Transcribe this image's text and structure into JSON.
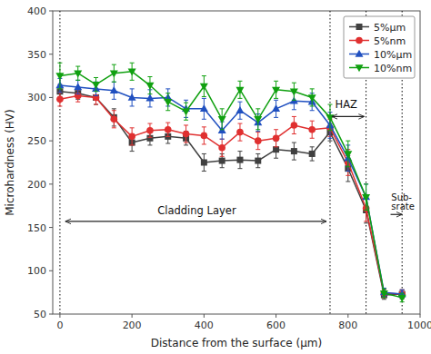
{
  "chart_data": {
    "type": "line",
    "x": [
      0,
      50,
      100,
      150,
      200,
      250,
      300,
      350,
      400,
      450,
      500,
      550,
      600,
      650,
      700,
      750,
      800,
      850,
      900,
      950
    ],
    "series": [
      {
        "name": "5%μm",
        "color": "#404040",
        "marker": "square",
        "values": [
          307,
          305,
          300,
          277,
          248,
          253,
          255,
          253,
          225,
          227,
          228,
          227,
          240,
          238,
          235,
          260,
          218,
          170,
          72,
          73
        ],
        "errors": [
          8,
          7,
          8,
          10,
          10,
          8,
          8,
          8,
          10,
          8,
          10,
          8,
          10,
          10,
          8,
          10,
          15,
          15,
          5,
          5
        ]
      },
      {
        "name": "5%nm",
        "color": "#e03030",
        "marker": "circle",
        "values": [
          298,
          302,
          300,
          275,
          255,
          262,
          263,
          258,
          256,
          242,
          260,
          250,
          253,
          268,
          263,
          265,
          225,
          172,
          74,
          73
        ],
        "errors": [
          8,
          7,
          8,
          10,
          10,
          8,
          8,
          10,
          10,
          10,
          10,
          10,
          10,
          10,
          10,
          10,
          15,
          15,
          5,
          5
        ]
      },
      {
        "name": "10%μm",
        "color": "#2050c0",
        "marker": "triangle-up",
        "values": [
          314,
          312,
          310,
          308,
          300,
          299,
          300,
          287,
          287,
          262,
          285,
          271,
          287,
          296,
          295,
          268,
          230,
          185,
          75,
          73
        ],
        "errors": [
          8,
          8,
          8,
          10,
          10,
          10,
          10,
          10,
          12,
          10,
          10,
          10,
          10,
          10,
          10,
          15,
          15,
          15,
          5,
          5
        ]
      },
      {
        "name": "10%nm",
        "color": "#10a010",
        "marker": "triangle-down",
        "values": [
          325,
          328,
          315,
          328,
          330,
          314,
          295,
          284,
          313,
          275,
          309,
          275,
          309,
          307,
          300,
          277,
          235,
          185,
          74,
          69
        ],
        "errors": [
          15,
          8,
          8,
          10,
          10,
          10,
          10,
          10,
          12,
          12,
          10,
          12,
          10,
          10,
          10,
          15,
          15,
          15,
          5,
          5
        ]
      }
    ],
    "xlabel": "Distance from the surface (μm)",
    "ylabel": "Microhardness (HV)",
    "xlim": [
      -20,
      1000
    ],
    "ylim": [
      50,
      400
    ],
    "xticks": [
      0,
      200,
      400,
      600,
      800,
      1000
    ],
    "yticks": [
      50,
      100,
      150,
      200,
      250,
      300,
      350,
      400
    ],
    "grid": false,
    "legend": "upper right",
    "vlines": [
      0,
      750,
      850,
      950
    ],
    "annotations": [
      {
        "text": "Cladding Layer",
        "x": 380,
        "y": 162,
        "align": "center",
        "arrow": {
          "x1": 15,
          "x2": 740,
          "y": 157,
          "style": "<->"
        }
      },
      {
        "text": "HAZ",
        "x": 795,
        "y": 285,
        "align": "center",
        "arrow": {
          "x1": 755,
          "x2": 845,
          "y": 278,
          "style": "<->"
        }
      },
      {
        "text": "Sub-\nsrate",
        "x": 920,
        "y": 190,
        "align": "left",
        "arrow": {
          "x1": 918,
          "x2": 950,
          "y": 165,
          "style": "->"
        }
      }
    ]
  }
}
